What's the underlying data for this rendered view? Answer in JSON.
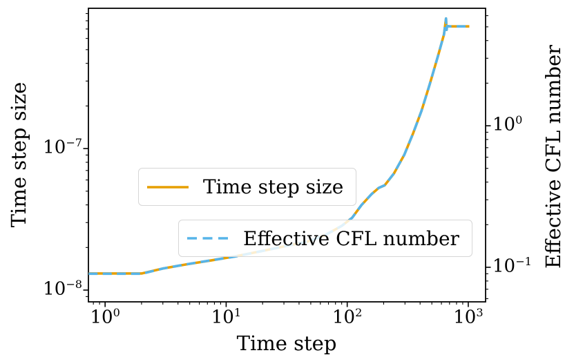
{
  "chart_data": {
    "type": "line",
    "x_axis": {
      "label": "Time step",
      "scale": "log",
      "lim": [
        0.728,
        1390
      ],
      "ticks": [
        {
          "v": 1,
          "base": "10",
          "exp": "0"
        },
        {
          "v": 10,
          "base": "10",
          "exp": "1"
        },
        {
          "v": 100,
          "base": "10",
          "exp": "2"
        },
        {
          "v": 1000,
          "base": "10",
          "exp": "3"
        }
      ]
    },
    "y_left": {
      "label": "Time step size",
      "scale": "log",
      "lim": [
        8.26e-09,
        9.8e-07
      ],
      "ticks": [
        {
          "v": 1e-07,
          "base": "10",
          "exp": "−7"
        },
        {
          "v": 1e-08,
          "base": "10",
          "exp": "−8"
        }
      ]
    },
    "y_right": {
      "label": "Effective CFL number",
      "scale": "log",
      "lim": [
        0.057,
        6.762
      ],
      "ticks": [
        {
          "v": 1,
          "base": "10",
          "exp": "0"
        },
        {
          "v": 0.1,
          "base": "10",
          "exp": "−1"
        }
      ]
    },
    "grid": false,
    "legend_position": "center-left, stacked boxes inside axes",
    "x": [
      0.73,
      1,
      1.4,
      2,
      3,
      4.7,
      7.5,
      11.8,
      18.7,
      29.6,
      47,
      65,
      90,
      110,
      131,
      159,
      182,
      204,
      243,
      296,
      350,
      411,
      480,
      564,
      630,
      655,
      662,
      668,
      700,
      1020
    ],
    "series": [
      {
        "name": "Time step size",
        "color": "#E69F00",
        "style": "solid",
        "axis": "left",
        "values": [
          1.31e-08,
          1.31e-08,
          1.31e-08,
          1.31e-08,
          1.42e-08,
          1.52e-08,
          1.62e-08,
          1.73e-08,
          1.87e-08,
          2.03e-08,
          2.2e-08,
          2.43e-08,
          2.84e-08,
          3.25e-08,
          3.98e-08,
          4.77e-08,
          5.27e-08,
          5.5e-08,
          6.66e-08,
          9.03e-08,
          1.28e-07,
          1.85e-07,
          2.84e-07,
          4.56e-07,
          6.4e-07,
          8.3e-07,
          6.9e-07,
          7.35e-07,
          7.3e-07,
          7.3e-07
        ]
      },
      {
        "name": "Effective CFL number",
        "color": "#56B4E9",
        "style": "dashed",
        "axis": "right",
        "values": [
          0.09,
          0.09,
          0.09,
          0.09,
          0.098,
          0.105,
          0.112,
          0.119,
          0.129,
          0.14,
          0.152,
          0.168,
          0.196,
          0.224,
          0.275,
          0.329,
          0.364,
          0.38,
          0.46,
          0.623,
          0.883,
          1.277,
          1.96,
          3.146,
          4.416,
          5.727,
          4.761,
          5.072,
          5.037,
          5.037
        ]
      }
    ]
  },
  "colors": {
    "axes": "#000000",
    "legend_border": "#d6d6d6",
    "background": "#ffffff"
  }
}
